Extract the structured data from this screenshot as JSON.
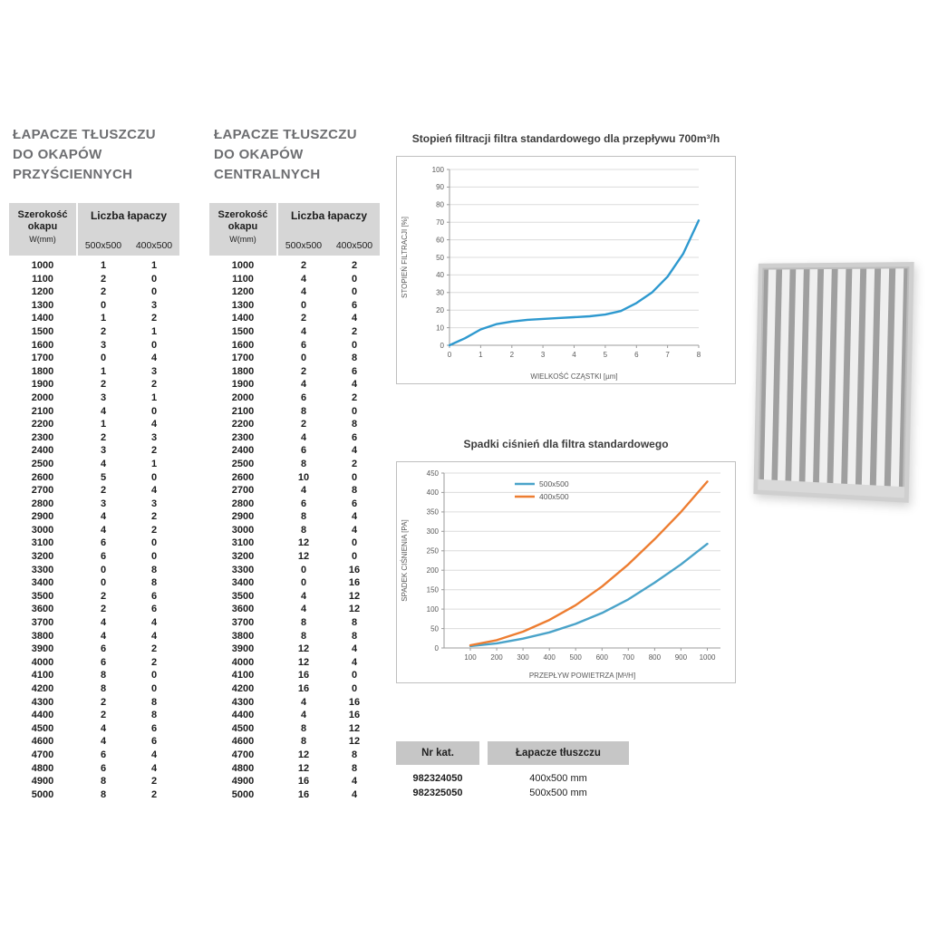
{
  "tables": {
    "wall": {
      "title": [
        "ŁAPACZE TŁUSZCZU",
        "DO OKAPÓW",
        "PRZYŚCIENNYCH"
      ],
      "header": {
        "width_label": "Szerokość okapu",
        "width_unit": "W(mm)",
        "group_label": "Liczba łapaczy",
        "size_a": "500x500",
        "size_b": "400x500"
      },
      "rows": [
        [
          1000,
          1,
          1
        ],
        [
          1100,
          2,
          0
        ],
        [
          1200,
          2,
          0
        ],
        [
          1300,
          0,
          3
        ],
        [
          1400,
          1,
          2
        ],
        [
          1500,
          2,
          1
        ],
        [
          1600,
          3,
          0
        ],
        [
          1700,
          0,
          4
        ],
        [
          1800,
          1,
          3
        ],
        [
          1900,
          2,
          2
        ],
        [
          2000,
          3,
          1
        ],
        [
          2100,
          4,
          0
        ],
        [
          2200,
          1,
          4
        ],
        [
          2300,
          2,
          3
        ],
        [
          2400,
          3,
          2
        ],
        [
          2500,
          4,
          1
        ],
        [
          2600,
          5,
          0
        ],
        [
          2700,
          2,
          4
        ],
        [
          2800,
          3,
          3
        ],
        [
          2900,
          4,
          2
        ],
        [
          3000,
          4,
          2
        ],
        [
          3100,
          6,
          0
        ],
        [
          3200,
          6,
          0
        ],
        [
          3300,
          0,
          8
        ],
        [
          3400,
          0,
          8
        ],
        [
          3500,
          2,
          6
        ],
        [
          3600,
          2,
          6
        ],
        [
          3700,
          4,
          4
        ],
        [
          3800,
          4,
          4
        ],
        [
          3900,
          6,
          2
        ],
        [
          4000,
          6,
          2
        ],
        [
          4100,
          8,
          0
        ],
        [
          4200,
          8,
          0
        ],
        [
          4300,
          2,
          8
        ],
        [
          4400,
          2,
          8
        ],
        [
          4500,
          4,
          6
        ],
        [
          4600,
          4,
          6
        ],
        [
          4700,
          6,
          4
        ],
        [
          4800,
          6,
          4
        ],
        [
          4900,
          8,
          2
        ],
        [
          5000,
          8,
          2
        ]
      ]
    },
    "central": {
      "title": [
        "ŁAPACZE TŁUSZCZU",
        "DO OKAPÓW",
        "CENTRALNYCH"
      ],
      "header": {
        "width_label": "Szerokość okapu",
        "width_unit": "W(mm)",
        "group_label": "Liczba łapaczy",
        "size_a": "500x500",
        "size_b": "400x500"
      },
      "rows": [
        [
          1000,
          2,
          2
        ],
        [
          1100,
          4,
          0
        ],
        [
          1200,
          4,
          0
        ],
        [
          1300,
          0,
          6
        ],
        [
          1400,
          2,
          4
        ],
        [
          1500,
          4,
          2
        ],
        [
          1600,
          6,
          0
        ],
        [
          1700,
          0,
          8
        ],
        [
          1800,
          2,
          6
        ],
        [
          1900,
          4,
          4
        ],
        [
          2000,
          6,
          2
        ],
        [
          2100,
          8,
          0
        ],
        [
          2200,
          2,
          8
        ],
        [
          2300,
          4,
          6
        ],
        [
          2400,
          6,
          4
        ],
        [
          2500,
          8,
          2
        ],
        [
          2600,
          10,
          0
        ],
        [
          2700,
          4,
          8
        ],
        [
          2800,
          6,
          6
        ],
        [
          2900,
          8,
          4
        ],
        [
          3000,
          8,
          4
        ],
        [
          3100,
          12,
          0
        ],
        [
          3200,
          12,
          0
        ],
        [
          3300,
          0,
          16
        ],
        [
          3400,
          0,
          16
        ],
        [
          3500,
          4,
          12
        ],
        [
          3600,
          4,
          12
        ],
        [
          3700,
          8,
          8
        ],
        [
          3800,
          8,
          8
        ],
        [
          3900,
          12,
          4
        ],
        [
          4000,
          12,
          4
        ],
        [
          4100,
          16,
          0
        ],
        [
          4200,
          16,
          0
        ],
        [
          4300,
          4,
          16
        ],
        [
          4400,
          4,
          16
        ],
        [
          4500,
          8,
          12
        ],
        [
          4600,
          8,
          12
        ],
        [
          4700,
          12,
          8
        ],
        [
          4800,
          12,
          8
        ],
        [
          4900,
          16,
          4
        ],
        [
          5000,
          16,
          4
        ]
      ]
    }
  },
  "chart_data": [
    {
      "type": "line",
      "title": "Stopień filtracji filtra standardowego dla przepływu 700m³/h",
      "xlabel": "WIELKOŚĆ CZĄSTKI [µm]",
      "ylabel": "STOPIEŃ FILTRACJI [%]",
      "xlim": [
        0,
        8
      ],
      "ylim": [
        0,
        100
      ],
      "xticks": [
        0,
        1,
        2,
        3,
        4,
        5,
        6,
        7,
        8
      ],
      "yticks": [
        0,
        10,
        20,
        30,
        40,
        50,
        60,
        70,
        80,
        90,
        100
      ],
      "grid": true,
      "legend_position": "none",
      "series": [
        {
          "name": "filtracja-standard",
          "color": "#2e99cf",
          "x": [
            0,
            0.5,
            1,
            1.5,
            2,
            2.5,
            3,
            3.5,
            4,
            4.5,
            5,
            5.5,
            6,
            6.5,
            7,
            7.5,
            8
          ],
          "y": [
            0,
            4,
            9,
            12,
            13.5,
            14.5,
            15,
            15.5,
            16,
            16.5,
            17.5,
            19.5,
            24,
            30,
            39,
            52,
            71
          ]
        }
      ]
    },
    {
      "type": "line",
      "title": "Spadki ciśnień dla filtra standardowego",
      "xlabel": "PRZEPŁYW POWIETRZA [M³/H]",
      "ylabel": "SPADEK CIŚNIENIA [PA]",
      "xlim": [
        0,
        1050
      ],
      "ylim": [
        0,
        450
      ],
      "xticks": [
        100,
        200,
        300,
        400,
        500,
        600,
        700,
        800,
        900,
        1000
      ],
      "yticks": [
        0,
        50,
        100,
        150,
        200,
        250,
        300,
        350,
        400,
        450
      ],
      "grid": true,
      "legend_position": "top",
      "series": [
        {
          "name": "500x500",
          "color": "#4aa3c9",
          "x": [
            100,
            200,
            300,
            400,
            500,
            600,
            700,
            800,
            900,
            1000
          ],
          "y": [
            5,
            12,
            24,
            40,
            62,
            90,
            125,
            168,
            215,
            268
          ]
        },
        {
          "name": "400x500",
          "color": "#ed7d31",
          "x": [
            100,
            200,
            300,
            400,
            500,
            600,
            700,
            800,
            900,
            1000
          ],
          "y": [
            7,
            20,
            42,
            72,
            110,
            158,
            215,
            280,
            350,
            428
          ]
        }
      ]
    }
  ],
  "catalog": {
    "col1_header": "Nr kat.",
    "col2_header": "Łapacze tłuszczu",
    "rows": [
      [
        "982324050",
        "400x500 mm"
      ],
      [
        "982325050",
        "500x500 mm"
      ]
    ]
  },
  "images": {
    "filter": "baffle-grease-filter-photo"
  }
}
